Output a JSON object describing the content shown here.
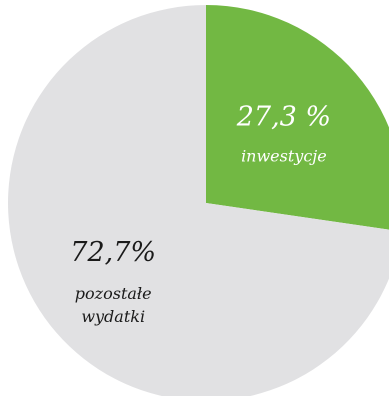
{
  "chart_data": {
    "type": "pie",
    "start": "top",
    "direction": "clockwise",
    "slices": [
      {
        "value": 27.3,
        "percent_label": "27,3 %",
        "label_lines": [
          "inwestycje"
        ],
        "color": "#72b843",
        "text_color": "#ffffff"
      },
      {
        "value": 72.7,
        "percent_label": "72,7%",
        "label_lines": [
          "pozostałe",
          "wydatki"
        ],
        "color": "#e1e1e3",
        "text_color": "#1a1a1a"
      }
    ]
  }
}
